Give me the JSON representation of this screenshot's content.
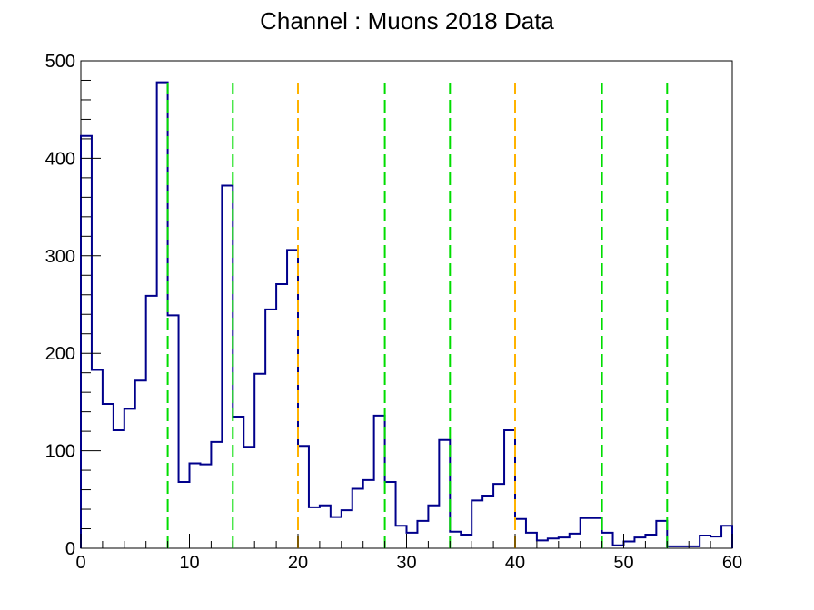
{
  "chart_data": {
    "type": "histogram",
    "title": "Channel : Muons 2018 Data",
    "xlabel": "",
    "ylabel": "",
    "xlim": [
      0,
      60
    ],
    "ylim": [
      0,
      500
    ],
    "x_ticks": [
      "0",
      "10",
      "20",
      "30",
      "40",
      "50",
      "60"
    ],
    "y_ticks": [
      "0",
      "100",
      "200",
      "300",
      "400",
      "500"
    ],
    "grid": false,
    "legend": "none",
    "bin_edges_start": 0,
    "bin_width": 1,
    "series": [
      {
        "color": "#00008b",
        "values": [
          423,
          183,
          148,
          121,
          143,
          172,
          259,
          478,
          239,
          68,
          87,
          86,
          109,
          372,
          135,
          104,
          179,
          245,
          271,
          306,
          105,
          42,
          44,
          32,
          39,
          61,
          70,
          136,
          68,
          23,
          16,
          28,
          44,
          111,
          17,
          14,
          49,
          54,
          66,
          121,
          30,
          16,
          8,
          10,
          11,
          15,
          31,
          31,
          16,
          3,
          7,
          11,
          14,
          28,
          2,
          2,
          2,
          13,
          12,
          23
        ]
      }
    ],
    "vertical_lines": [
      {
        "x": 8,
        "color": "#00dd00",
        "style": "dashed"
      },
      {
        "x": 14,
        "color": "#00dd00",
        "style": "dashed"
      },
      {
        "x": 20,
        "color": "#ffb300",
        "style": "dashed"
      },
      {
        "x": 28,
        "color": "#00dd00",
        "style": "dashed"
      },
      {
        "x": 34,
        "color": "#00dd00",
        "style": "dashed"
      },
      {
        "x": 40,
        "color": "#ffb300",
        "style": "dashed"
      },
      {
        "x": 48,
        "color": "#00dd00",
        "style": "dashed"
      },
      {
        "x": 54,
        "color": "#00dd00",
        "style": "dashed"
      }
    ]
  }
}
